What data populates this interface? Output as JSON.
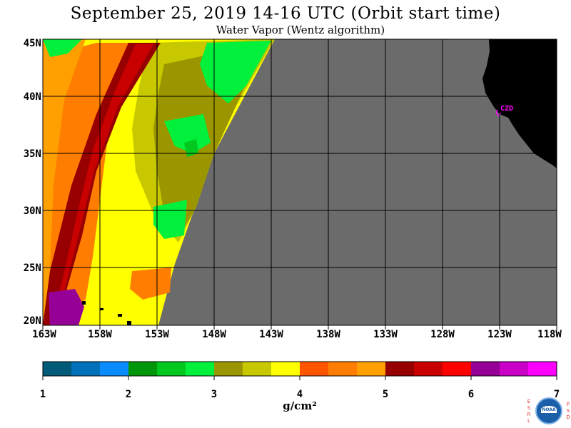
{
  "title": "September 25, 2019  14-16 UTC  (Orbit start time)",
  "subtitle": "Water Vapor (Wentz algorithm)",
  "lat_labels": [
    "45N",
    "40N",
    "35N",
    "30N",
    "25N",
    "20N"
  ],
  "lon_labels": [
    "163W",
    "158W",
    "153W",
    "148W",
    "143W",
    "138W",
    "133W",
    "128W",
    "123W",
    "118W"
  ],
  "city_label": "CZD",
  "colorbar": {
    "colors": [
      "#005a78",
      "#0070b8",
      "#0a8cff",
      "#00960a",
      "#00c81e",
      "#00f03c",
      "#9b9600",
      "#c8c800",
      "#ffff00",
      "#ff5500",
      "#ff7d00",
      "#ffa000",
      "#960000",
      "#c80000",
      "#ff0000",
      "#960096",
      "#c800c8",
      "#ff00ff"
    ],
    "tick_labels": [
      "1",
      "2",
      "3",
      "4",
      "5",
      "6",
      "7"
    ],
    "units": "g/cm²"
  },
  "colors": {
    "no_data": "#6b6b6b",
    "land": "#000000",
    "grid": "#000000",
    "city_marker": "#ff00ff"
  },
  "logo": {
    "left_letters": [
      "E",
      "S",
      "R",
      "L"
    ],
    "right_letters": [
      "P",
      "S",
      "D"
    ],
    "text": "NOAA"
  }
}
